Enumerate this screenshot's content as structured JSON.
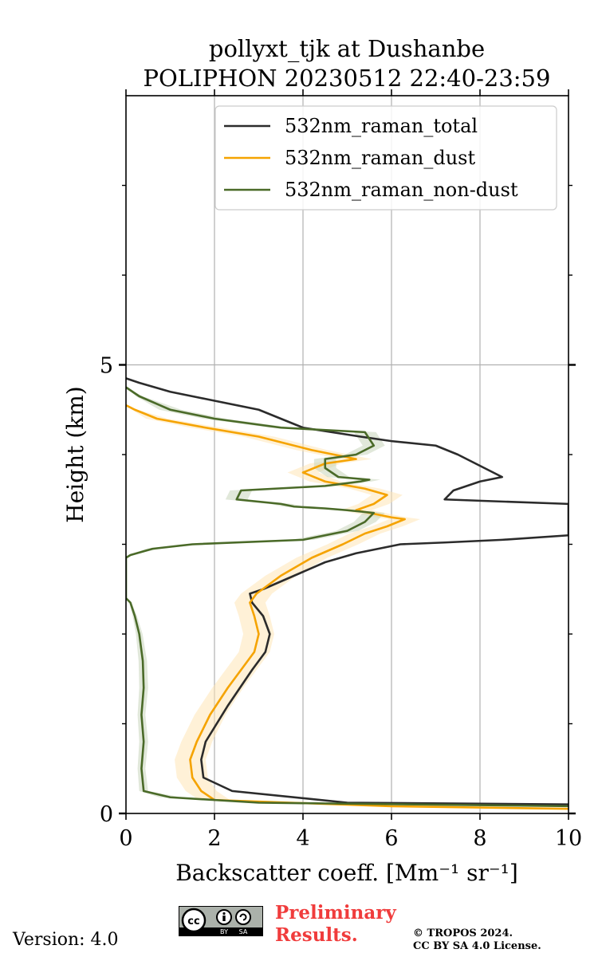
{
  "chart_data": {
    "type": "line",
    "title_line1": "pollyxt_tjk at Dushanbe",
    "title_line2": "POLIPHON 20230512 22:40-23:59",
    "xlabel": "Backscatter coeff. [Mm⁻¹ sr⁻¹]",
    "ylabel": "Height (km)",
    "xlim": [
      0,
      10
    ],
    "ylim": [
      0,
      8
    ],
    "x_ticks": [
      0,
      2,
      4,
      6,
      8,
      10
    ],
    "x_tick_labels": [
      "0",
      "2",
      "4",
      "6",
      "8",
      "10"
    ],
    "y_major_ticks": [
      0,
      5
    ],
    "y_tick_labels": [
      "0",
      "5"
    ],
    "y_minor_ticks": [
      1,
      2,
      3,
      4,
      6,
      7
    ],
    "grid": true,
    "legend_position": "top-right",
    "series": [
      {
        "name": "532nm_raman_total",
        "color": "#2b2b2b",
        "x": [
          10.2,
          5.0,
          2.4,
          1.75,
          1.7,
          1.8,
          2.3,
          2.85,
          3.15,
          3.25,
          3.1,
          2.85,
          2.8,
          3.1,
          3.8,
          4.5,
          5.2,
          5.7,
          6.2,
          7.2,
          8.5,
          10.0,
          10.0,
          8.3,
          7.2,
          7.4,
          8.0,
          8.5,
          8.1,
          7.5,
          7.0,
          6.0,
          5.3,
          4.0,
          3.0,
          2.0,
          1.0,
          0.3,
          0
        ],
        "y": [
          0.1,
          0.12,
          0.25,
          0.4,
          0.6,
          0.8,
          1.2,
          1.6,
          1.8,
          2.0,
          2.2,
          2.35,
          2.45,
          2.5,
          2.65,
          2.8,
          2.9,
          2.95,
          3.0,
          3.02,
          3.05,
          3.1,
          3.45,
          3.48,
          3.5,
          3.6,
          3.7,
          3.75,
          3.85,
          4.0,
          4.1,
          4.15,
          4.2,
          4.3,
          4.5,
          4.6,
          4.7,
          4.8,
          4.85
        ]
      },
      {
        "name": "532nm_raman_dust",
        "color": "#f5a300",
        "x": [
          10.2,
          6.0,
          2.0,
          1.7,
          1.5,
          1.45,
          1.6,
          1.9,
          2.3,
          2.6,
          2.9,
          3.0,
          2.9,
          2.8,
          2.95,
          3.5,
          4.2,
          4.9,
          5.4,
          5.9,
          6.3,
          6.0,
          5.2,
          5.6,
          5.9,
          5.4,
          4.5,
          4.0,
          4.5,
          5.2,
          4.2,
          3.0,
          1.8,
          0.7,
          0.2,
          0
        ],
        "y": [
          0.05,
          0.08,
          0.15,
          0.25,
          0.4,
          0.6,
          0.8,
          1.1,
          1.4,
          1.6,
          1.8,
          2.0,
          2.2,
          2.35,
          2.45,
          2.65,
          2.85,
          3.0,
          3.12,
          3.2,
          3.28,
          3.3,
          3.38,
          3.45,
          3.55,
          3.62,
          3.7,
          3.8,
          3.9,
          3.95,
          4.05,
          4.2,
          4.3,
          4.4,
          4.5,
          4.55
        ]
      },
      {
        "name": "532nm_raman_non-dust",
        "color": "#4a6a28",
        "x": [
          10.2,
          3.0,
          1.0,
          0.4,
          0.35,
          0.4,
          0.35,
          0.4,
          0.38,
          0.3,
          0.2,
          0.1,
          0,
          0,
          0.1,
          0.6,
          1.5,
          4.0,
          5.0,
          5.4,
          5.6,
          5.0,
          4.5,
          3.8,
          3.5,
          2.5,
          2.6,
          4.5,
          5.3,
          5.5,
          4.8,
          4.5,
          4.5,
          5.2,
          5.6,
          5.4,
          3.5,
          2.0,
          1.0,
          0.3,
          0
        ],
        "y": [
          0.08,
          0.12,
          0.18,
          0.25,
          0.5,
          0.8,
          1.1,
          1.4,
          1.7,
          2.0,
          2.2,
          2.35,
          2.4,
          2.85,
          2.88,
          2.95,
          3.0,
          3.05,
          3.15,
          3.25,
          3.35,
          3.38,
          3.4,
          3.42,
          3.45,
          3.5,
          3.6,
          3.65,
          3.7,
          3.72,
          3.75,
          3.85,
          3.95,
          4.0,
          4.1,
          4.25,
          4.3,
          4.4,
          4.5,
          4.65,
          4.75
        ]
      }
    ]
  },
  "footer": {
    "version": "Version: 4.0",
    "preliminary_line1": "Preliminary",
    "preliminary_line2": "Results.",
    "copyright_line1": "© TROPOS 2024.",
    "copyright_line2": "CC BY SA 4.0 License.",
    "cc_by": "BY",
    "cc_sa": "SA",
    "cc_mark": "cc"
  }
}
